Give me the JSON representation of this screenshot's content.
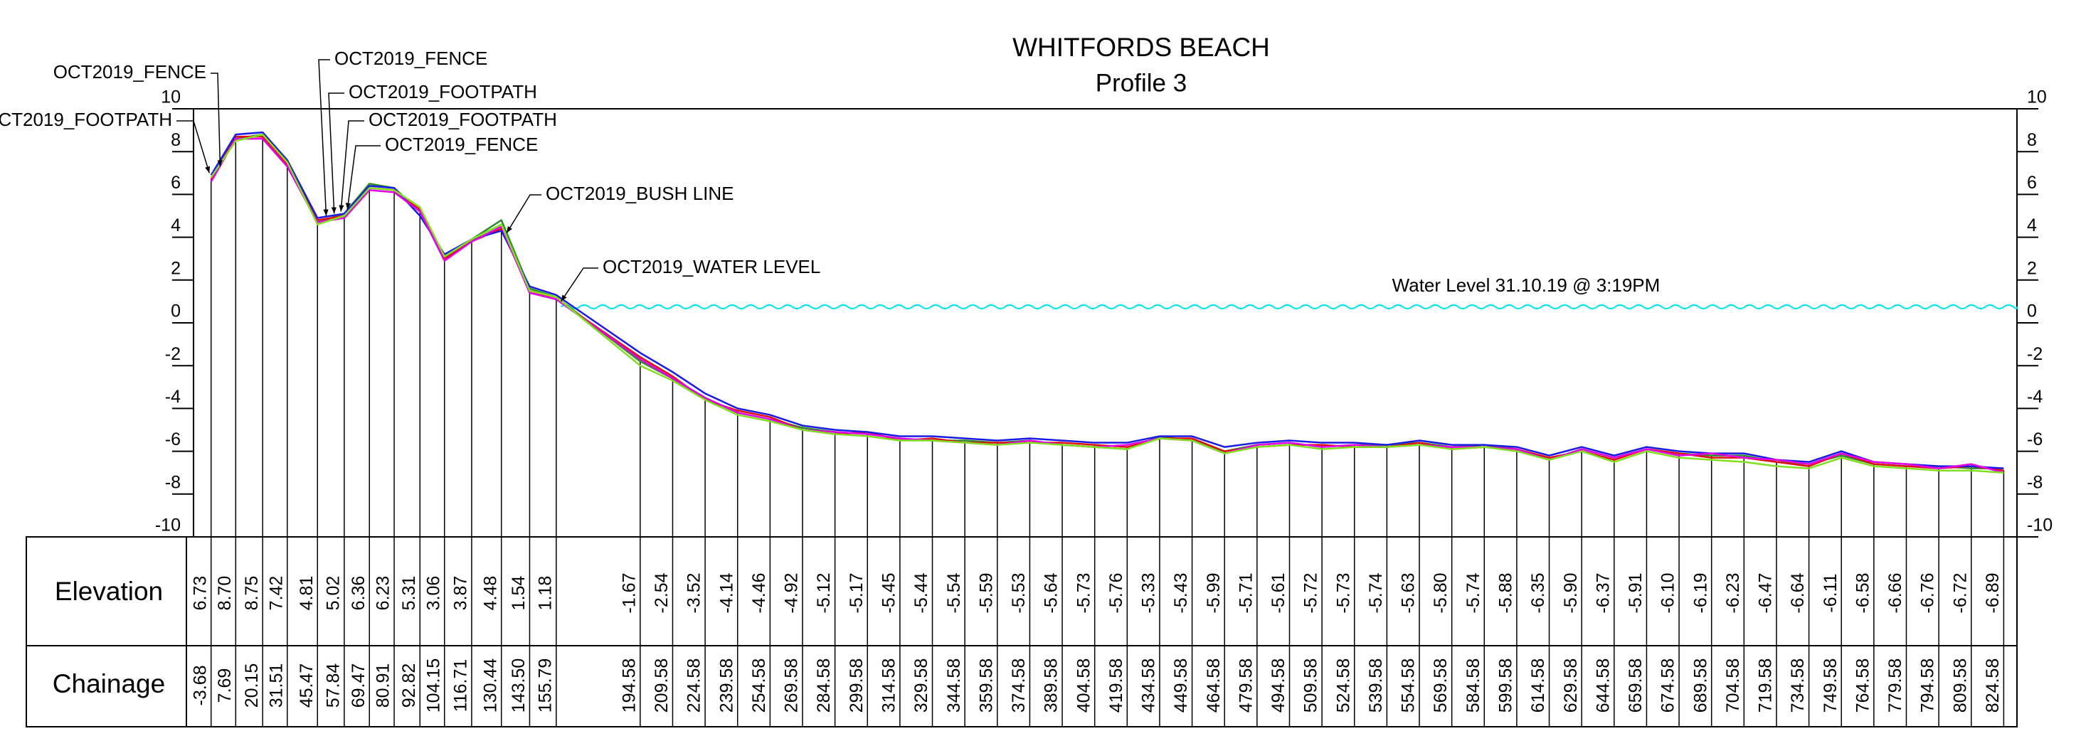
{
  "chart_data": {
    "type": "line",
    "title": "WHITFORDS BEACH",
    "subtitle": "Profile 3",
    "xlim": [
      -11.8,
      830.7
    ],
    "ylim": [
      -10,
      10
    ],
    "yticks": [
      10,
      8,
      6,
      4,
      2,
      0,
      -2,
      -4,
      -6,
      -8,
      -10
    ],
    "row_labels": [
      "Elevation",
      "Chainage"
    ],
    "x": [
      -3.68,
      7.69,
      20.15,
      31.51,
      45.47,
      57.84,
      69.47,
      80.91,
      92.82,
      104.15,
      116.71,
      130.44,
      143.5,
      155.79,
      194.58,
      209.58,
      224.58,
      239.58,
      254.58,
      269.58,
      284.58,
      299.58,
      314.58,
      329.58,
      344.58,
      359.58,
      374.58,
      389.58,
      404.58,
      419.58,
      434.58,
      449.58,
      464.58,
      479.58,
      494.58,
      509.58,
      524.58,
      539.58,
      554.58,
      569.58,
      584.58,
      599.58,
      614.58,
      629.58,
      644.58,
      659.58,
      674.58,
      689.58,
      704.58,
      719.58,
      734.58,
      749.58,
      764.58,
      779.58,
      794.58,
      809.58,
      824.58
    ],
    "x_labels": [
      "-3.68",
      "7.69",
      "20.15",
      "31.51",
      "45.47",
      "57.84",
      "69.47",
      "80.91",
      "92.82",
      "104.15",
      "116.71",
      "130.44",
      "143.50",
      "155.79",
      "194.58",
      "209.58",
      "224.58",
      "239.58",
      "254.58",
      "269.58",
      "284.58",
      "299.58",
      "314.58",
      "329.58",
      "344.58",
      "359.58",
      "374.58",
      "389.58",
      "404.58",
      "419.58",
      "434.58",
      "449.58",
      "464.58",
      "479.58",
      "494.58",
      "509.58",
      "524.58",
      "539.58",
      "554.58",
      "569.58",
      "584.58",
      "599.58",
      "614.58",
      "629.58",
      "644.58",
      "659.58",
      "674.58",
      "689.58",
      "704.58",
      "719.58",
      "734.58",
      "749.58",
      "764.58",
      "779.58",
      "794.58",
      "809.58",
      "824.58"
    ],
    "elevations": [
      6.73,
      8.7,
      8.75,
      7.42,
      4.81,
      5.02,
      6.36,
      6.23,
      5.31,
      3.06,
      3.87,
      4.48,
      1.54,
      1.18,
      -1.67,
      -2.54,
      -3.52,
      -4.14,
      -4.46,
      -4.92,
      -5.12,
      -5.17,
      -5.45,
      -5.44,
      -5.54,
      -5.59,
      -5.53,
      -5.64,
      -5.73,
      -5.76,
      -5.33,
      -5.43,
      -5.99,
      -5.71,
      -5.61,
      -5.72,
      -5.73,
      -5.74,
      -5.63,
      -5.8,
      -5.74,
      -5.88,
      -6.35,
      -5.9,
      -6.37,
      -5.91,
      -6.1,
      -6.19,
      -6.23,
      -6.47,
      -6.64,
      -6.11,
      -6.58,
      -6.66,
      -6.76,
      -6.72,
      -6.89
    ],
    "elevation_labels": [
      "6.73",
      "8.70",
      "8.75",
      "7.42",
      "4.81",
      "5.02",
      "6.36",
      "6.23",
      "5.31",
      "3.06",
      "3.87",
      "4.48",
      "1.54",
      "1.18",
      "-1.67",
      "-2.54",
      "-3.52",
      "-4.14",
      "-4.46",
      "-4.92",
      "-5.12",
      "-5.17",
      "-5.45",
      "-5.44",
      "-5.54",
      "-5.59",
      "-5.53",
      "-5.64",
      "-5.73",
      "-5.76",
      "-5.33",
      "-5.43",
      "-5.99",
      "-5.71",
      "-5.61",
      "-5.72",
      "-5.73",
      "-5.74",
      "-5.63",
      "-5.80",
      "-5.74",
      "-5.88",
      "-6.35",
      "-5.90",
      "-6.37",
      "-5.91",
      "-6.10",
      "-6.19",
      "-6.23",
      "-6.47",
      "-6.64",
      "-6.11",
      "-6.58",
      "-6.66",
      "-6.76",
      "-6.72",
      "-6.89"
    ],
    "series": [
      {
        "color": "#2e8b2e",
        "values": [
          6.8,
          8.6,
          8.8,
          7.5,
          4.7,
          5.1,
          6.5,
          6.3,
          5.2,
          3.1,
          3.9,
          4.8,
          1.6,
          1.2,
          -1.8,
          -2.6,
          -3.5,
          -4.2,
          -4.5,
          -4.9,
          -5.1,
          -5.2,
          -5.4,
          -5.5,
          -5.5,
          -5.6,
          -5.5,
          -5.7,
          -5.8,
          -5.9,
          -5.3,
          -5.5,
          -6.0,
          -5.7,
          -5.6,
          -5.8,
          -5.7,
          -5.7,
          -5.6,
          -5.8,
          -5.7,
          -5.9,
          -6.4,
          -5.9,
          -6.3,
          -5.9,
          -6.1,
          -6.2,
          -6.2,
          -6.5,
          -6.6,
          -6.2,
          -6.6,
          -6.7,
          -6.7,
          -6.8,
          -6.8
        ]
      },
      {
        "color": "#e01010",
        "values": [
          6.7,
          8.7,
          8.7,
          7.4,
          4.8,
          5.0,
          6.3,
          6.2,
          5.3,
          3.0,
          3.8,
          4.4,
          1.5,
          1.1,
          -1.6,
          -2.5,
          -3.6,
          -4.1,
          -4.4,
          -5.0,
          -5.2,
          -5.1,
          -5.5,
          -5.4,
          -5.6,
          -5.6,
          -5.6,
          -5.6,
          -5.7,
          -5.8,
          -5.4,
          -5.4,
          -6.0,
          -5.8,
          -5.7,
          -5.7,
          -5.8,
          -5.8,
          -5.6,
          -5.9,
          -5.8,
          -5.9,
          -6.3,
          -6.0,
          -6.4,
          -5.9,
          -6.1,
          -6.3,
          -6.3,
          -6.5,
          -6.7,
          -6.1,
          -6.6,
          -6.7,
          -6.8,
          -6.7,
          -6.9
        ]
      },
      {
        "color": "#1a1ae6",
        "values": [
          6.9,
          8.8,
          8.9,
          7.6,
          4.9,
          5.1,
          6.4,
          6.3,
          5.0,
          3.2,
          3.9,
          4.3,
          1.7,
          1.3,
          -1.4,
          -2.3,
          -3.3,
          -4.0,
          -4.3,
          -4.8,
          -5.0,
          -5.1,
          -5.3,
          -5.3,
          -5.4,
          -5.5,
          -5.4,
          -5.5,
          -5.6,
          -5.6,
          -5.3,
          -5.3,
          -5.8,
          -5.6,
          -5.5,
          -5.6,
          -5.6,
          -5.7,
          -5.5,
          -5.7,
          -5.7,
          -5.8,
          -6.2,
          -5.8,
          -6.2,
          -5.8,
          -6.0,
          -6.1,
          -6.1,
          -6.4,
          -6.5,
          -6.0,
          -6.5,
          -6.6,
          -6.7,
          -6.7,
          -6.8
        ]
      },
      {
        "color": "#e600e6",
        "values": [
          6.6,
          8.6,
          8.6,
          7.3,
          4.7,
          4.9,
          6.2,
          6.1,
          5.2,
          2.9,
          3.8,
          4.5,
          1.4,
          1.1,
          -1.7,
          -2.6,
          -3.5,
          -4.2,
          -4.5,
          -5.0,
          -5.1,
          -5.2,
          -5.4,
          -5.5,
          -5.6,
          -5.7,
          -5.5,
          -5.7,
          -5.8,
          -5.7,
          -5.4,
          -5.5,
          -6.1,
          -5.7,
          -5.6,
          -5.8,
          -5.7,
          -5.8,
          -5.7,
          -5.8,
          -5.8,
          -5.9,
          -6.4,
          -5.9,
          -6.3,
          -5.9,
          -6.2,
          -6.1,
          -6.3,
          -6.4,
          -6.6,
          -6.1,
          -6.5,
          -6.6,
          -6.8,
          -6.6,
          -7.0
        ]
      },
      {
        "color": "#80e020",
        "values": [
          6.8,
          8.5,
          8.8,
          7.5,
          4.6,
          5.0,
          6.3,
          6.2,
          5.4,
          3.1,
          3.9,
          4.6,
          1.5,
          1.2,
          -2.0,
          -2.7,
          -3.6,
          -4.3,
          -4.6,
          -5.0,
          -5.2,
          -5.3,
          -5.5,
          -5.5,
          -5.6,
          -5.7,
          -5.6,
          -5.7,
          -5.8,
          -5.9,
          -5.4,
          -5.5,
          -6.1,
          -5.8,
          -5.7,
          -5.9,
          -5.8,
          -5.8,
          -5.7,
          -5.9,
          -5.8,
          -6.0,
          -6.4,
          -6.0,
          -6.5,
          -6.0,
          -6.3,
          -6.4,
          -6.5,
          -6.7,
          -6.8,
          -6.3,
          -6.7,
          -6.8,
          -6.9,
          -6.9,
          -7.0
        ]
      }
    ],
    "annotations": [
      {
        "text": "OCT2019_FOOTPATH",
        "x": -4.5,
        "y": 7.0
      },
      {
        "text": "OCT2019_FENCE",
        "x": 0.5,
        "y": 7.3
      },
      {
        "text": "OCT2019_FENCE",
        "x": 49.5,
        "y": 5.0
      },
      {
        "text": "OCT2019_FOOTPATH",
        "x": 53.2,
        "y": 5.1
      },
      {
        "text": "OCT2019_FOOTPATH",
        "x": 56.3,
        "y": 5.2
      },
      {
        "text": "OCT2019_FENCE",
        "x": 59.3,
        "y": 5.3
      },
      {
        "text": "OCT2019_BUSH LINE",
        "x": 132.9,
        "y": 4.2
      },
      {
        "text": "OCT2019_WATER LEVEL",
        "x": 158,
        "y": 1.0
      }
    ],
    "water_level": {
      "label": "Water Level 31.10.19 @ 3:19PM",
      "value": 0.75,
      "x": [
        158,
        830.7
      ],
      "color": "#00e5f0"
    }
  }
}
